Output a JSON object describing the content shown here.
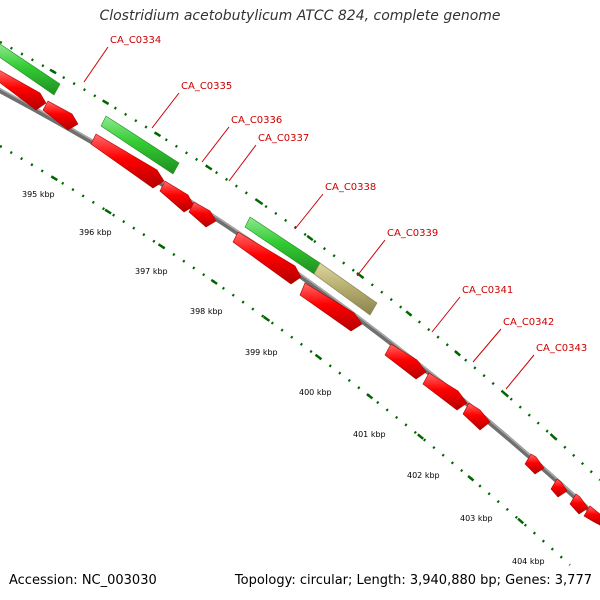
{
  "title": "Clostridium acetobutylicum ATCC 824, complete genome",
  "accession_text": "Accession: NC_003030",
  "topology_text": "Topology: circular; Length: 3,940,880 bp; Genes: 3,777",
  "kbp_labels": [
    "395 kbp",
    "396 kbp",
    "397 kbp",
    "398 kbp",
    "399 kbp",
    "400 kbp",
    "401 kbp",
    "402 kbp",
    "403 kbp",
    "404 kbp"
  ],
  "gene_labels": [
    "CA_C0334",
    "CA_C0335",
    "CA_C0336",
    "CA_C0337",
    "CA_C0338",
    "CA_C0339",
    "CA_C0341",
    "CA_C0342",
    "CA_C0343"
  ],
  "colors": {
    "cds": "#ff0000",
    "gene": "#33cc33",
    "rna": "#b8b070",
    "label": "#cc0000",
    "backbone": "#808080",
    "ticks": "#006600"
  }
}
